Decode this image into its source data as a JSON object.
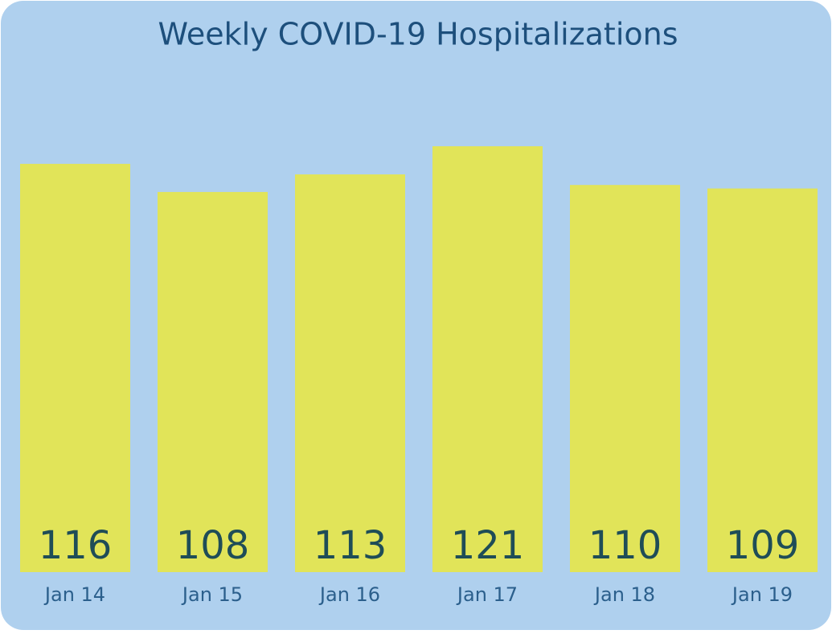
{
  "chart_data": {
    "type": "bar",
    "title": "Weekly COVID-19 Hospitalizations",
    "categories": [
      "Jan 14",
      "Jan 15",
      "Jan 16",
      "Jan 17",
      "Jan 18",
      "Jan 19"
    ],
    "values": [
      116,
      108,
      113,
      121,
      110,
      109
    ],
    "color": "#e1e459"
  }
}
